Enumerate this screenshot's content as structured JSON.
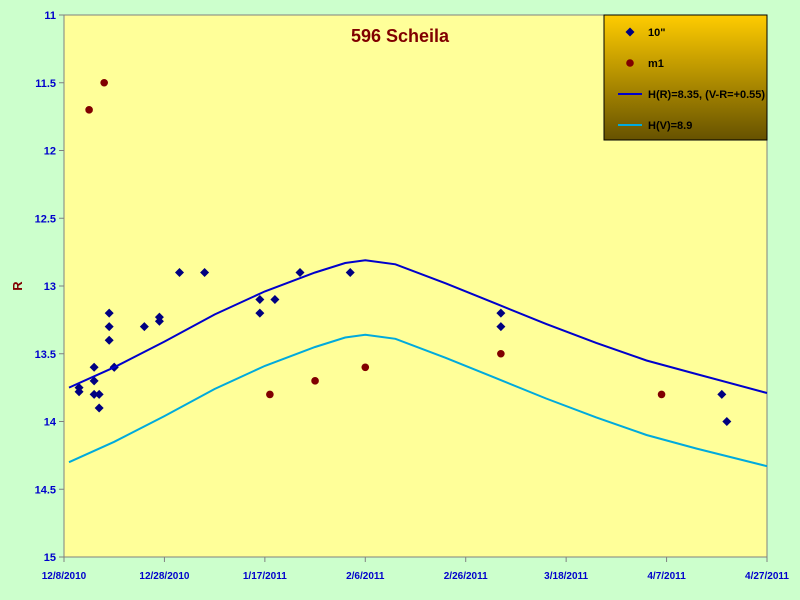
{
  "chart_data": {
    "type": "scatter",
    "title": "596 Scheila",
    "xlabel": "",
    "ylabel": "R",
    "x_range": [
      "2010-12-08",
      "2011-04-27"
    ],
    "x_ticks": [
      "12/8/2010",
      "12/28/2010",
      "1/17/2011",
      "2/6/2011",
      "2/26/2011",
      "3/18/2011",
      "4/7/2011",
      "4/27/2011"
    ],
    "x_tick_dates": [
      "2010-12-08",
      "2010-12-28",
      "2011-01-17",
      "2011-02-06",
      "2011-02-26",
      "2011-03-18",
      "2011-04-07",
      "2011-04-27"
    ],
    "y_range": [
      11,
      15
    ],
    "y_inverted": true,
    "y_ticks": [
      "11",
      "11.5",
      "12",
      "12.5",
      "13",
      "13.5",
      "14",
      "14.5",
      "15"
    ],
    "y_tick_values": [
      11,
      11.5,
      12,
      12.5,
      13,
      13.5,
      14,
      14.5,
      15
    ],
    "grid": false,
    "legend_position": "top-right",
    "colors": {
      "plot_bg": "#ffff99",
      "page_bg": "#ccffcc",
      "tick_label": "#0000cc",
      "title": "#800000",
      "legend_bg_top": "#ffcc00",
      "legend_bg_bottom": "#665200"
    },
    "series": [
      {
        "name": "10\"",
        "kind": "points",
        "marker": "diamond",
        "color": "#000080",
        "points": [
          [
            "2010-12-11",
            13.75
          ],
          [
            "2010-12-11",
            13.78
          ],
          [
            "2010-12-14",
            13.6
          ],
          [
            "2010-12-14",
            13.7
          ],
          [
            "2010-12-14",
            13.8
          ],
          [
            "2010-12-15",
            13.8
          ],
          [
            "2010-12-15",
            13.9
          ],
          [
            "2010-12-17",
            13.2
          ],
          [
            "2010-12-17",
            13.3
          ],
          [
            "2010-12-17",
            13.4
          ],
          [
            "2010-12-18",
            13.6
          ],
          [
            "2010-12-18",
            13.6
          ],
          [
            "2010-12-24",
            13.3
          ],
          [
            "2010-12-27",
            13.23
          ],
          [
            "2010-12-27",
            13.26
          ],
          [
            "2010-12-31",
            12.9
          ],
          [
            "2011-01-05",
            12.9
          ],
          [
            "2011-01-16",
            13.1
          ],
          [
            "2011-01-16",
            13.2
          ],
          [
            "2011-01-19",
            13.1
          ],
          [
            "2011-01-24",
            12.9
          ],
          [
            "2011-02-03",
            12.9
          ],
          [
            "2011-03-05",
            13.2
          ],
          [
            "2011-03-05",
            13.3
          ],
          [
            "2011-04-18",
            13.8
          ],
          [
            "2011-04-19",
            14.0
          ]
        ]
      },
      {
        "name": "m1",
        "kind": "points",
        "marker": "circle",
        "color": "#800000",
        "points": [
          [
            "2010-12-13",
            11.7
          ],
          [
            "2010-12-16",
            11.5
          ],
          [
            "2011-01-18",
            13.8
          ],
          [
            "2011-01-27",
            13.7
          ],
          [
            "2011-02-06",
            13.6
          ],
          [
            "2011-03-05",
            13.5
          ],
          [
            "2011-04-06",
            13.8
          ]
        ]
      },
      {
        "name": "H(R)=8.35, (V-R=+0.55)",
        "kind": "line",
        "color": "#0000cc",
        "points": [
          [
            "2010-12-09",
            13.75
          ],
          [
            "2010-12-18",
            13.6
          ],
          [
            "2010-12-28",
            13.41
          ],
          [
            "2011-01-07",
            13.21
          ],
          [
            "2011-01-17",
            13.04
          ],
          [
            "2011-01-27",
            12.9
          ],
          [
            "2011-02-02",
            12.83
          ],
          [
            "2011-02-06",
            12.81
          ],
          [
            "2011-02-12",
            12.84
          ],
          [
            "2011-02-22",
            12.98
          ],
          [
            "2011-03-04",
            13.13
          ],
          [
            "2011-03-14",
            13.28
          ],
          [
            "2011-03-24",
            13.42
          ],
          [
            "2011-04-03",
            13.55
          ],
          [
            "2011-04-13",
            13.65
          ],
          [
            "2011-04-27",
            13.79
          ]
        ]
      },
      {
        "name": "H(V)=8.9",
        "kind": "line",
        "color": "#00aadd",
        "points": [
          [
            "2010-12-09",
            14.3
          ],
          [
            "2010-12-18",
            14.15
          ],
          [
            "2010-12-28",
            13.96
          ],
          [
            "2011-01-07",
            13.76
          ],
          [
            "2011-01-17",
            13.59
          ],
          [
            "2011-01-27",
            13.45
          ],
          [
            "2011-02-02",
            13.38
          ],
          [
            "2011-02-06",
            13.36
          ],
          [
            "2011-02-12",
            13.39
          ],
          [
            "2011-02-22",
            13.53
          ],
          [
            "2011-03-04",
            13.68
          ],
          [
            "2011-03-14",
            13.83
          ],
          [
            "2011-03-24",
            13.97
          ],
          [
            "2011-04-03",
            14.1
          ],
          [
            "2011-04-13",
            14.2
          ],
          [
            "2011-04-27",
            14.33
          ]
        ]
      }
    ]
  }
}
